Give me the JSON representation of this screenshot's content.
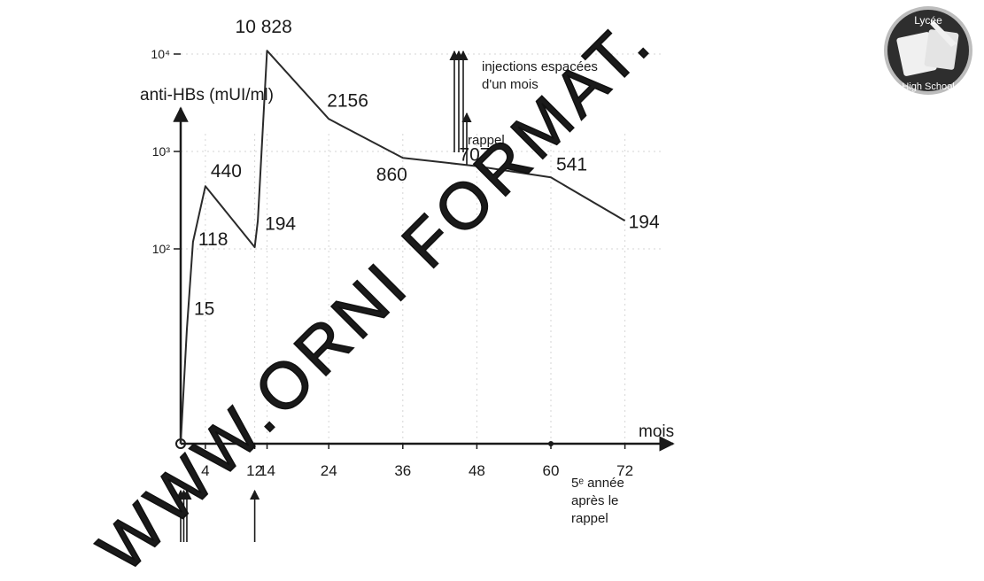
{
  "chart_data": {
    "type": "line",
    "ylabel": "anti-HBs (mUI/ml)",
    "xlabel": "mois",
    "y_scale": "log",
    "ylim": [
      1,
      10000
    ],
    "xlim": [
      0,
      75
    ],
    "x_ticks": [
      4,
      12,
      14,
      24,
      36,
      48,
      60,
      72
    ],
    "y_ticks": [
      {
        "value": 100,
        "label": "10²"
      },
      {
        "value": 1000,
        "label": "10³"
      },
      {
        "value": 10000,
        "label": "10⁴"
      }
    ],
    "grid": true,
    "series": [
      {
        "points": [
          {
            "x": 0,
            "y": 1
          },
          {
            "x": 1,
            "y": 15
          },
          {
            "x": 2,
            "y": 118
          },
          {
            "x": 4,
            "y": 440
          },
          {
            "x": 12,
            "y": 104
          },
          {
            "x": 12.5,
            "y": 194
          },
          {
            "x": 14,
            "y": 10828
          },
          {
            "x": 24,
            "y": 2156
          },
          {
            "x": 36,
            "y": 860
          },
          {
            "x": 48,
            "y": 707
          },
          {
            "x": 60,
            "y": 541
          },
          {
            "x": 72,
            "y": 194
          }
        ]
      }
    ],
    "data_labels": [
      {
        "x": 1,
        "y": 15,
        "text": "15"
      },
      {
        "x": 2,
        "y": 118,
        "text": "118"
      },
      {
        "x": 4,
        "y": 440,
        "text": "440"
      },
      {
        "x": 12.5,
        "y": 194,
        "text": "194"
      },
      {
        "x": 14,
        "y": 10828,
        "text": "10 828"
      },
      {
        "x": 24,
        "y": 2156,
        "text": "2156"
      },
      {
        "x": 36,
        "y": 860,
        "text": "860"
      },
      {
        "x": 48,
        "y": 707,
        "text": "707"
      },
      {
        "x": 60,
        "y": 541,
        "text": "541"
      },
      {
        "x": 72,
        "y": 194,
        "text": "194"
      }
    ],
    "injection_arrows": {
      "bottom": [
        0,
        0.5,
        1,
        12
      ],
      "top": [
        35.5,
        36,
        36.5,
        37.5
      ]
    },
    "annotations": {
      "top_injections": "injections espacées\nd'un mois",
      "rappel": "rappel",
      "fifth_year": "5ᵉ année\naprès le\nrappel"
    }
  },
  "watermark": "WWW.ORNI FORMAT.",
  "logo": {
    "top_text": "Lycée",
    "bottom_text": "High School",
    "colors": {
      "dark": "#2e2e2e",
      "ring": "#bdbdbd",
      "light": "#f0f0f0"
    }
  }
}
